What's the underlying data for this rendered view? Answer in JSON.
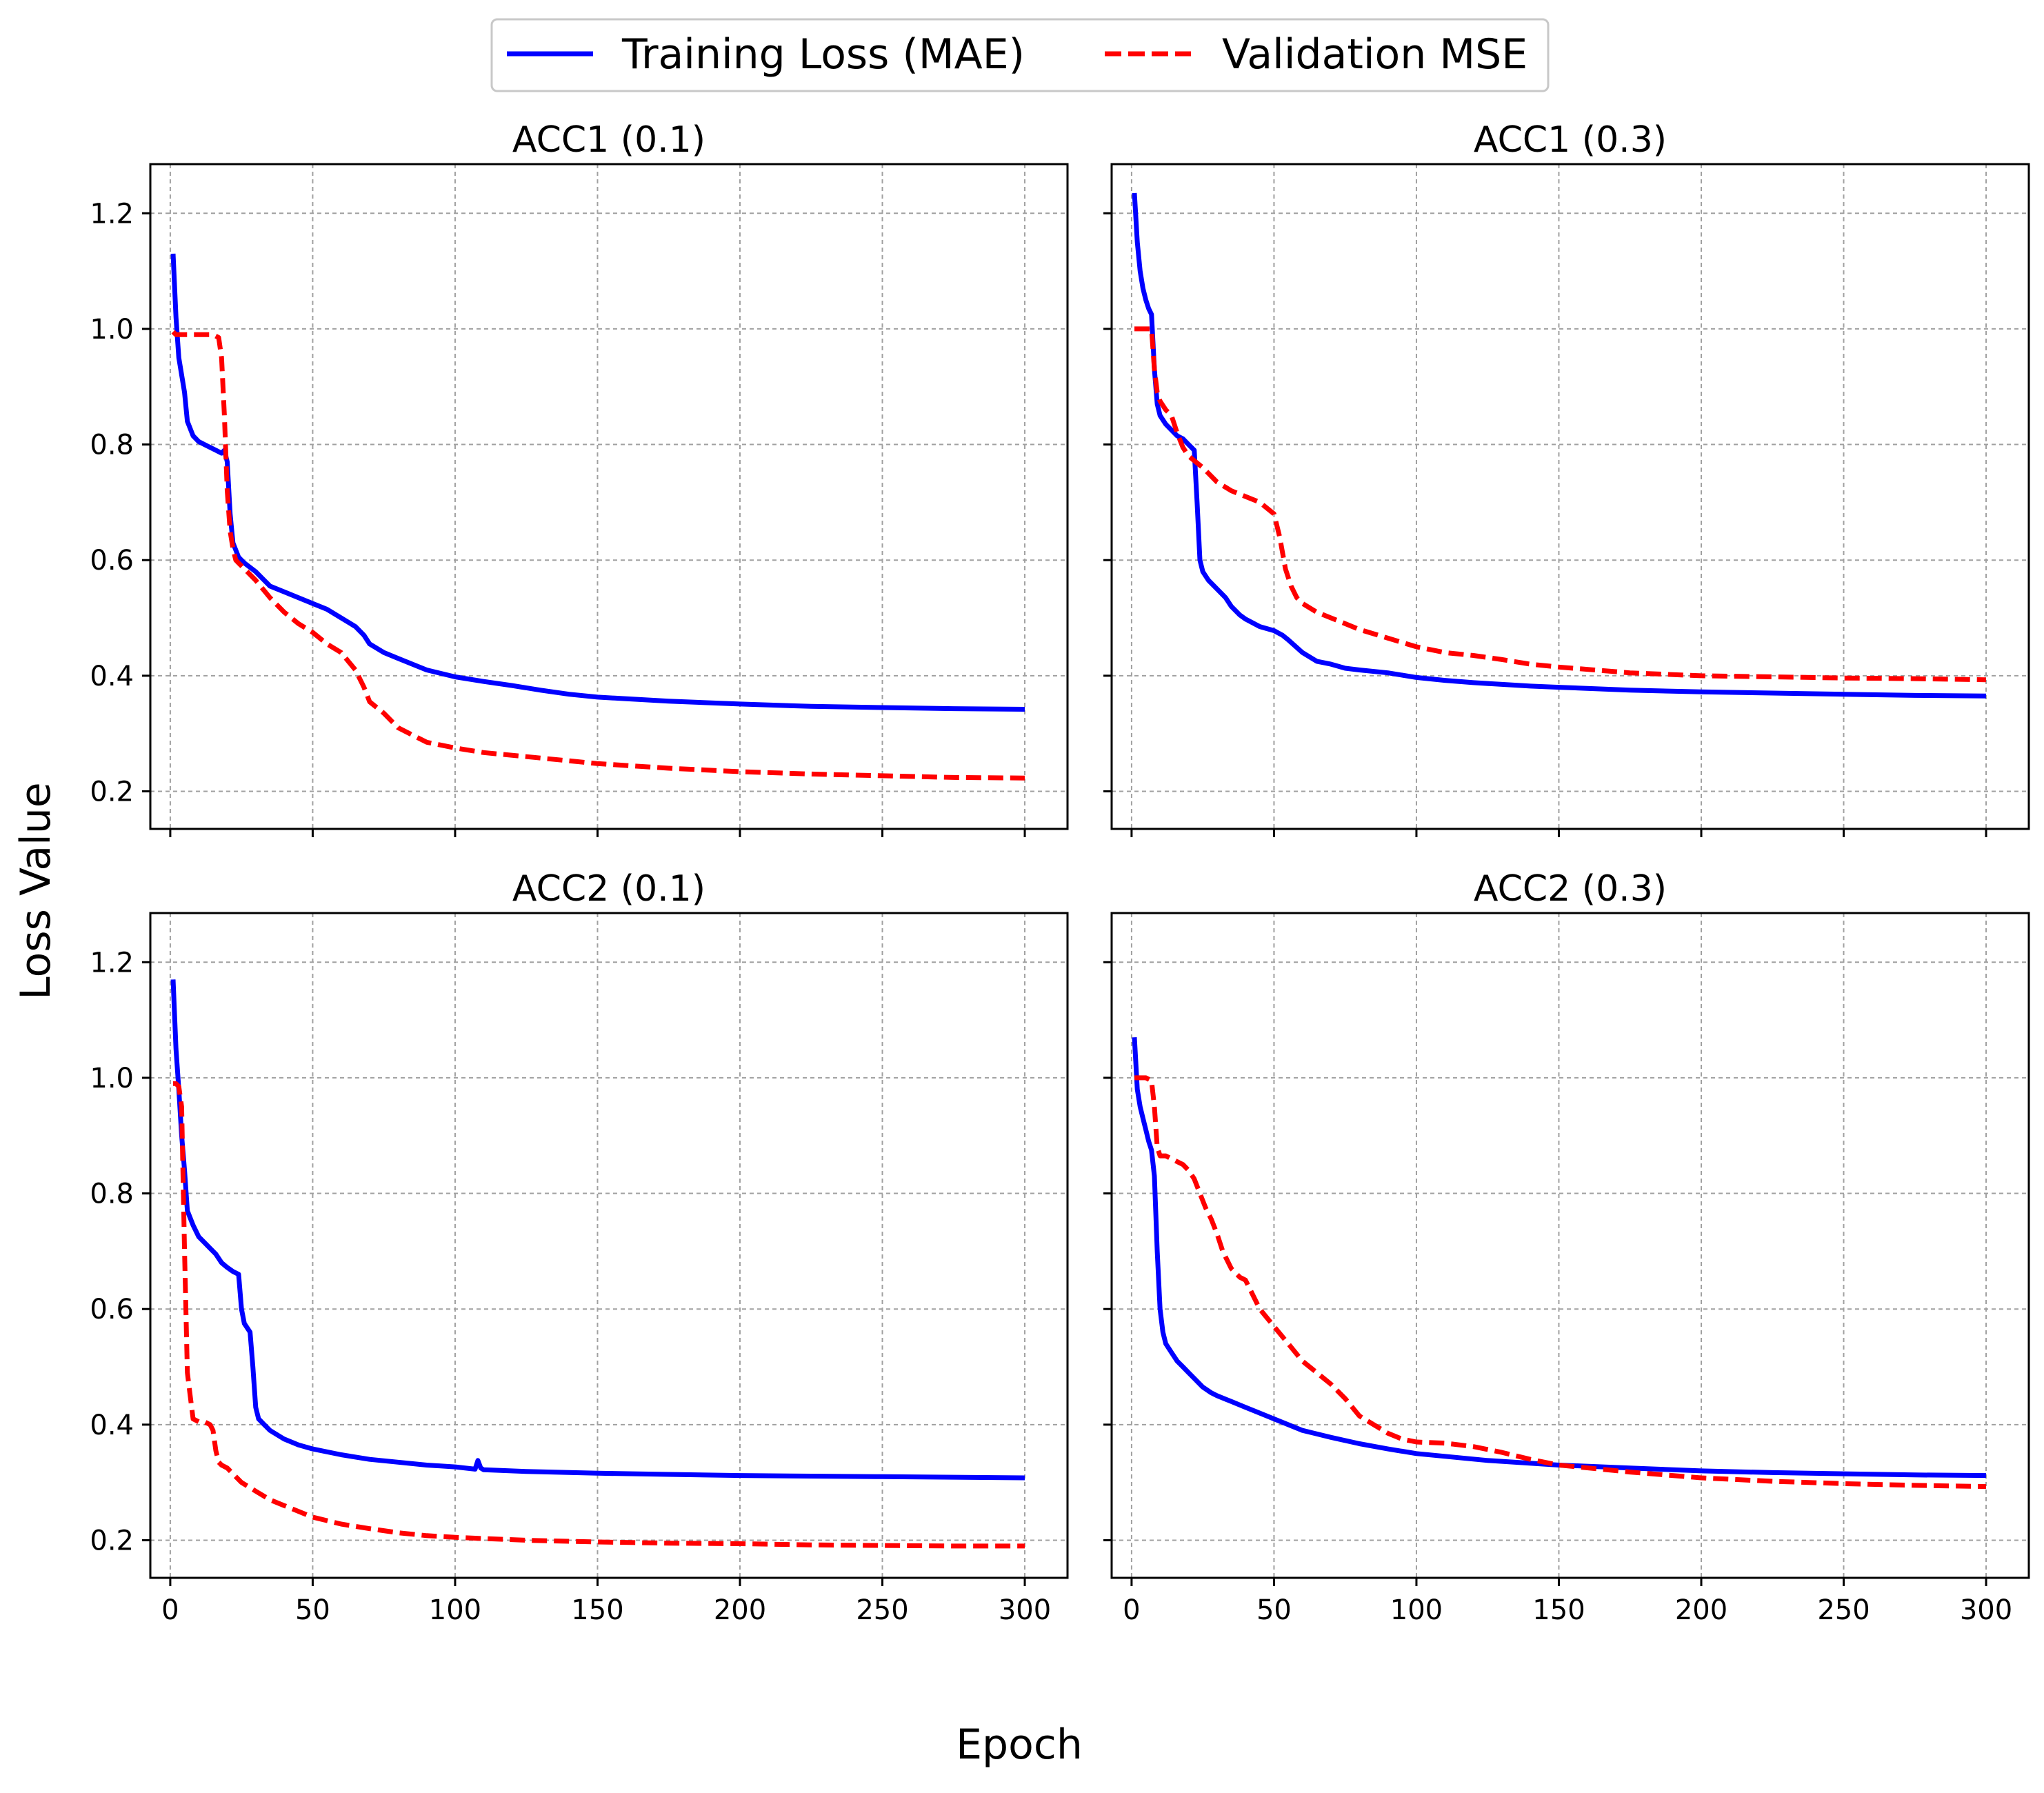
{
  "figure": {
    "ylabel": "Loss Value",
    "xlabel": "Epoch",
    "legend": {
      "placement": "top-center",
      "entries": [
        {
          "label": "Training Loss (MAE)",
          "color": "#0000ff",
          "style": "solid"
        },
        {
          "label": "Validation MSE",
          "color": "#ff0000",
          "style": "dashed"
        }
      ]
    }
  },
  "chart_data": [
    {
      "type": "line",
      "title": "ACC1 (0.1)",
      "xlim": [
        -7,
        315
      ],
      "ylim": [
        0.135,
        1.285
      ],
      "xticks": [
        0,
        50,
        100,
        150,
        200,
        250,
        300
      ],
      "yticks": [
        0.2,
        0.4,
        0.6,
        0.8,
        1.0,
        1.2
      ],
      "grid": true,
      "series": [
        {
          "name": "Training Loss (MAE)",
          "color": "#0000ff",
          "dash": false,
          "x": [
            1,
            2,
            3,
            5,
            6,
            8,
            10,
            12,
            14,
            16,
            18,
            19,
            20,
            21,
            22,
            24,
            26,
            30,
            35,
            40,
            50,
            55,
            60,
            65,
            68,
            70,
            75,
            80,
            90,
            100,
            110,
            120,
            130,
            140,
            150,
            175,
            200,
            225,
            250,
            275,
            300
          ],
          "y": [
            1.13,
            1.02,
            0.95,
            0.89,
            0.84,
            0.815,
            0.805,
            0.8,
            0.795,
            0.79,
            0.785,
            0.79,
            0.77,
            0.68,
            0.63,
            0.605,
            0.595,
            0.58,
            0.555,
            0.545,
            0.525,
            0.515,
            0.5,
            0.485,
            0.47,
            0.455,
            0.44,
            0.43,
            0.41,
            0.398,
            0.39,
            0.383,
            0.375,
            0.368,
            0.363,
            0.356,
            0.351,
            0.347,
            0.345,
            0.343,
            0.342
          ]
        },
        {
          "name": "Validation MSE",
          "color": "#ff0000",
          "dash": true,
          "x": [
            1,
            2,
            3,
            5,
            10,
            15,
            17,
            18,
            19,
            20,
            21,
            22,
            23,
            24,
            26,
            30,
            35,
            40,
            45,
            50,
            55,
            60,
            65,
            68,
            70,
            75,
            80,
            90,
            100,
            110,
            125,
            150,
            175,
            200,
            225,
            250,
            275,
            300
          ],
          "y": [
            0.995,
            0.99,
            0.99,
            0.99,
            0.99,
            0.99,
            0.985,
            0.95,
            0.85,
            0.72,
            0.65,
            0.62,
            0.6,
            0.595,
            0.585,
            0.565,
            0.535,
            0.51,
            0.49,
            0.475,
            0.455,
            0.44,
            0.41,
            0.38,
            0.355,
            0.335,
            0.31,
            0.285,
            0.275,
            0.267,
            0.26,
            0.248,
            0.24,
            0.234,
            0.23,
            0.227,
            0.224,
            0.223
          ]
        }
      ]
    },
    {
      "type": "line",
      "title": "ACC1 (0.3)",
      "xlim": [
        -7,
        315
      ],
      "ylim": [
        0.135,
        1.285
      ],
      "xticks": [
        0,
        50,
        100,
        150,
        200,
        250,
        300
      ],
      "yticks": [
        0.2,
        0.4,
        0.6,
        0.8,
        1.0,
        1.2
      ],
      "grid": true,
      "series": [
        {
          "name": "Training Loss (MAE)",
          "color": "#0000ff",
          "dash": false,
          "x": [
            1,
            2,
            3,
            4,
            5,
            6,
            7,
            8,
            9,
            10,
            12,
            14,
            16,
            18,
            20,
            22,
            23,
            24,
            25,
            27,
            30,
            33,
            35,
            38,
            40,
            45,
            50,
            53,
            55,
            60,
            65,
            70,
            75,
            80,
            90,
            100,
            110,
            120,
            130,
            140,
            150,
            175,
            200,
            225,
            250,
            275,
            300
          ],
          "y": [
            1.235,
            1.15,
            1.1,
            1.07,
            1.05,
            1.035,
            1.025,
            0.93,
            0.87,
            0.85,
            0.835,
            0.825,
            0.815,
            0.81,
            0.8,
            0.79,
            0.7,
            0.6,
            0.58,
            0.565,
            0.55,
            0.535,
            0.52,
            0.505,
            0.498,
            0.485,
            0.478,
            0.47,
            0.462,
            0.44,
            0.425,
            0.42,
            0.413,
            0.41,
            0.405,
            0.397,
            0.392,
            0.388,
            0.385,
            0.382,
            0.38,
            0.375,
            0.372,
            0.37,
            0.368,
            0.366,
            0.365
          ]
        },
        {
          "name": "Validation MSE",
          "color": "#ff0000",
          "dash": true,
          "x": [
            1,
            3,
            5,
            7,
            8,
            9,
            10,
            12,
            14,
            16,
            18,
            20,
            25,
            30,
            35,
            40,
            45,
            50,
            52,
            54,
            56,
            58,
            60,
            65,
            70,
            75,
            80,
            90,
            100,
            110,
            120,
            130,
            140,
            150,
            175,
            200,
            225,
            250,
            275,
            300
          ],
          "y": [
            1.0,
            1.0,
            1.0,
            1.0,
            0.93,
            0.89,
            0.875,
            0.86,
            0.85,
            0.82,
            0.795,
            0.78,
            0.76,
            0.735,
            0.72,
            0.71,
            0.7,
            0.68,
            0.64,
            0.585,
            0.555,
            0.535,
            0.525,
            0.51,
            0.5,
            0.49,
            0.48,
            0.465,
            0.45,
            0.44,
            0.435,
            0.428,
            0.42,
            0.415,
            0.405,
            0.4,
            0.398,
            0.396,
            0.395,
            0.393
          ]
        }
      ]
    },
    {
      "type": "line",
      "title": "ACC2 (0.1)",
      "xlim": [
        -7,
        315
      ],
      "ylim": [
        0.135,
        1.285
      ],
      "xticks": [
        0,
        50,
        100,
        150,
        200,
        250,
        300
      ],
      "yticks": [
        0.2,
        0.4,
        0.6,
        0.8,
        1.0,
        1.2
      ],
      "grid": true,
      "series": [
        {
          "name": "Training Loss (MAE)",
          "color": "#0000ff",
          "dash": false,
          "x": [
            1,
            2,
            3,
            4,
            5,
            6,
            8,
            10,
            12,
            14,
            16,
            18,
            20,
            22,
            24,
            25,
            26,
            28,
            29,
            30,
            31,
            33,
            35,
            40,
            45,
            50,
            60,
            70,
            80,
            90,
            100,
            107,
            108,
            109,
            110,
            125,
            150,
            175,
            200,
            225,
            250,
            275,
            300
          ],
          "y": [
            1.17,
            1.05,
            0.98,
            0.9,
            0.84,
            0.77,
            0.745,
            0.725,
            0.715,
            0.705,
            0.695,
            0.68,
            0.672,
            0.665,
            0.66,
            0.6,
            0.575,
            0.56,
            0.5,
            0.43,
            0.41,
            0.4,
            0.39,
            0.375,
            0.365,
            0.358,
            0.348,
            0.34,
            0.335,
            0.33,
            0.327,
            0.323,
            0.338,
            0.325,
            0.322,
            0.319,
            0.316,
            0.314,
            0.312,
            0.311,
            0.31,
            0.309,
            0.308
          ]
        },
        {
          "name": "Validation MSE",
          "color": "#ff0000",
          "dash": true,
          "x": [
            1,
            2,
            3,
            4,
            5,
            6,
            7,
            8,
            10,
            12,
            14,
            15,
            16,
            17,
            18,
            20,
            22,
            25,
            30,
            35,
            40,
            50,
            60,
            70,
            80,
            90,
            100,
            125,
            150,
            175,
            200,
            225,
            250,
            275,
            300
          ],
          "y": [
            0.99,
            0.99,
            0.985,
            0.95,
            0.7,
            0.49,
            0.45,
            0.41,
            0.405,
            0.405,
            0.4,
            0.39,
            0.355,
            0.335,
            0.33,
            0.325,
            0.315,
            0.3,
            0.285,
            0.27,
            0.26,
            0.24,
            0.228,
            0.22,
            0.213,
            0.208,
            0.205,
            0.2,
            0.197,
            0.195,
            0.194,
            0.192,
            0.191,
            0.19,
            0.19
          ]
        }
      ]
    },
    {
      "type": "line",
      "title": "ACC2 (0.3)",
      "xlim": [
        -7,
        315
      ],
      "ylim": [
        0.135,
        1.285
      ],
      "xticks": [
        0,
        50,
        100,
        150,
        200,
        250,
        300
      ],
      "yticks": [
        0.2,
        0.4,
        0.6,
        0.8,
        1.0,
        1.2
      ],
      "grid": true,
      "series": [
        {
          "name": "Training Loss (MAE)",
          "color": "#0000ff",
          "dash": false,
          "x": [
            1,
            2,
            3,
            4,
            5,
            6,
            7,
            8,
            9,
            10,
            11,
            12,
            14,
            16,
            18,
            20,
            22,
            25,
            28,
            30,
            35,
            40,
            45,
            50,
            60,
            70,
            80,
            90,
            100,
            125,
            150,
            175,
            200,
            225,
            250,
            275,
            300
          ],
          "y": [
            1.07,
            0.98,
            0.95,
            0.93,
            0.91,
            0.89,
            0.875,
            0.83,
            0.7,
            0.6,
            0.56,
            0.54,
            0.525,
            0.51,
            0.5,
            0.49,
            0.48,
            0.465,
            0.455,
            0.45,
            0.44,
            0.43,
            0.42,
            0.41,
            0.39,
            0.378,
            0.367,
            0.358,
            0.35,
            0.338,
            0.33,
            0.325,
            0.32,
            0.317,
            0.315,
            0.313,
            0.312
          ]
        },
        {
          "name": "Validation MSE",
          "color": "#ff0000",
          "dash": true,
          "x": [
            1,
            3,
            5,
            7,
            8,
            9,
            10,
            12,
            14,
            16,
            18,
            20,
            22,
            24,
            26,
            28,
            30,
            32,
            35,
            38,
            40,
            42,
            45,
            50,
            55,
            60,
            65,
            70,
            75,
            80,
            85,
            90,
            95,
            100,
            110,
            120,
            130,
            140,
            150,
            175,
            200,
            225,
            250,
            275,
            300
          ],
          "y": [
            1.0,
            1.0,
            1.0,
            0.995,
            0.95,
            0.88,
            0.865,
            0.865,
            0.86,
            0.855,
            0.85,
            0.84,
            0.825,
            0.8,
            0.775,
            0.755,
            0.73,
            0.7,
            0.67,
            0.655,
            0.65,
            0.63,
            0.6,
            0.57,
            0.54,
            0.51,
            0.49,
            0.47,
            0.445,
            0.415,
            0.4,
            0.385,
            0.375,
            0.37,
            0.368,
            0.362,
            0.352,
            0.34,
            0.33,
            0.318,
            0.308,
            0.302,
            0.298,
            0.295,
            0.293
          ]
        }
      ]
    }
  ]
}
